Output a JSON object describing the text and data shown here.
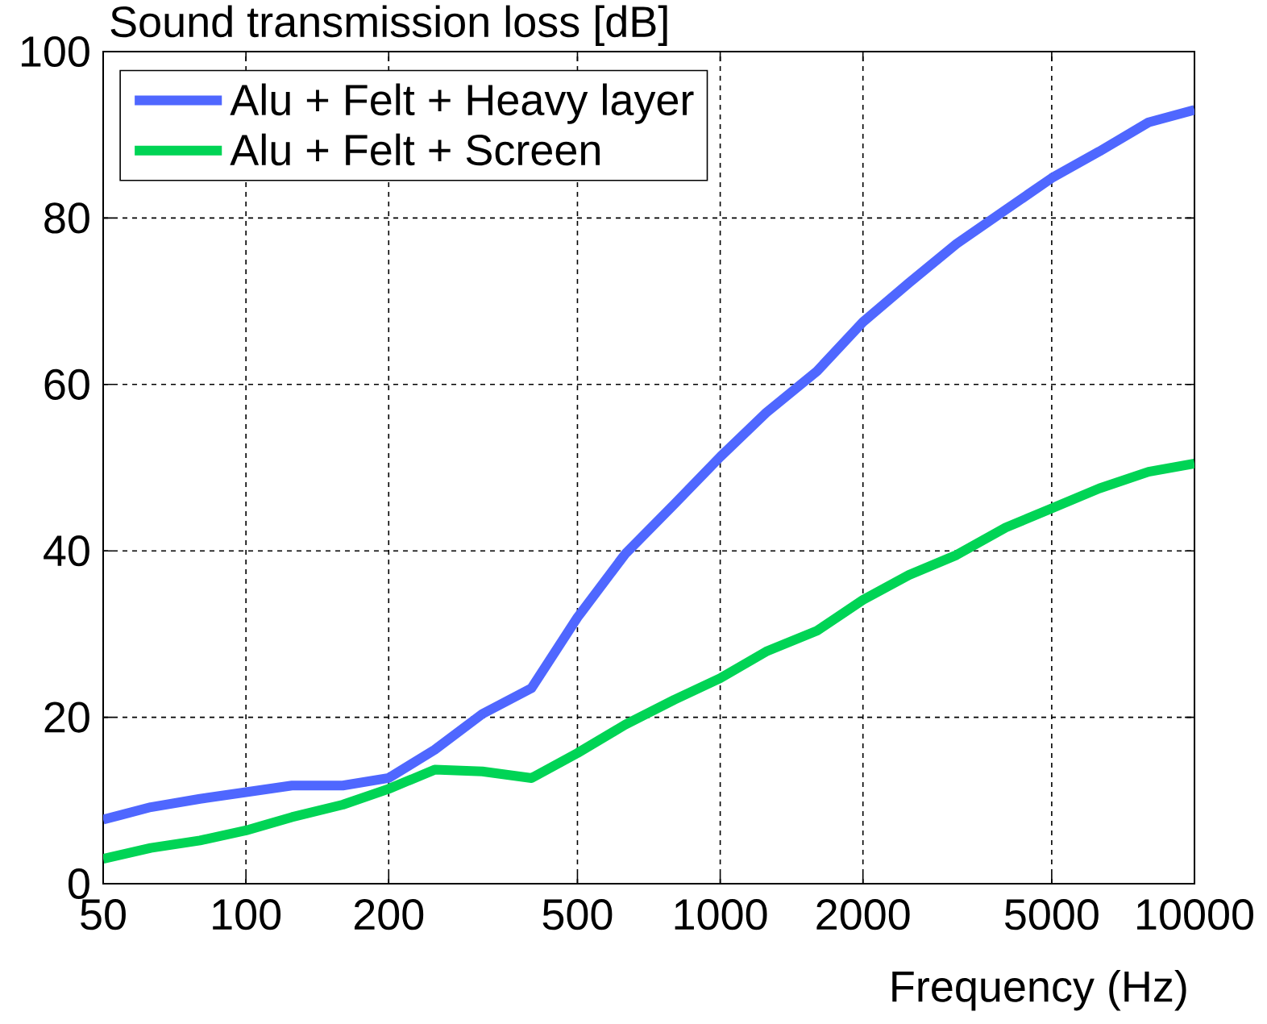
{
  "chart_data": {
    "type": "line",
    "ylabel": "Sound transmission loss [dB]",
    "xlabel": "Frequency (Hz)",
    "x": [
      50,
      63,
      80,
      100,
      125,
      160,
      200,
      250,
      315,
      400,
      500,
      630,
      800,
      1000,
      1250,
      1600,
      2000,
      2500,
      3150,
      4000,
      5000,
      6300,
      8000,
      10000
    ],
    "series": [
      {
        "name": "Alu + Felt + Heavy layer",
        "color": "#4f67ff",
        "values": [
          7.7,
          9.2,
          10.2,
          11.0,
          11.8,
          11.8,
          12.7,
          16.1,
          20.4,
          23.5,
          32.0,
          39.6,
          45.6,
          51.3,
          56.6,
          61.6,
          67.5,
          72.2,
          76.9,
          81.0,
          84.8,
          88.0,
          91.5,
          93.0
        ]
      },
      {
        "name": "Alu + Felt + Screen",
        "color": "#00d455",
        "values": [
          3.0,
          4.3,
          5.2,
          6.4,
          8.0,
          9.5,
          11.4,
          13.7,
          13.5,
          12.7,
          15.7,
          19.1,
          22.1,
          24.7,
          27.9,
          30.4,
          34.1,
          37.1,
          39.5,
          42.8,
          45.1,
          47.5,
          49.5,
          50.5
        ]
      }
    ],
    "xlim": [
      50,
      10000
    ],
    "ylim": [
      0,
      100
    ],
    "xticks": [
      50,
      100,
      200,
      500,
      1000,
      2000,
      5000,
      10000
    ],
    "yticks": [
      0,
      20,
      40,
      60,
      80,
      100
    ],
    "log": "x",
    "grid": true,
    "legend": "top left"
  }
}
